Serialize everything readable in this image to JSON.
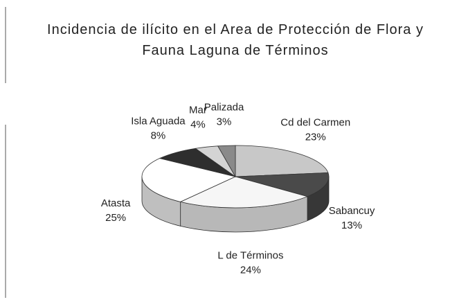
{
  "chart_data": {
    "type": "pie",
    "title": "Incidencia de ilícito en el Area de Protección de Flora y Fauna Laguna de Términos",
    "categories": [
      "Cd del Carmen",
      "Sabancuy",
      "L de Términos",
      "Atasta",
      "Isla Aguada",
      "Mar",
      "Palizada"
    ],
    "values": [
      23,
      13,
      24,
      25,
      8,
      4,
      3
    ],
    "value_labels": [
      "23%",
      "13%",
      "24%",
      "25%",
      "8%",
      "4%",
      "3%"
    ],
    "colors": [
      "#c8c8c8",
      "#4a4a4a",
      "#f6f6f6",
      "#ffffff",
      "#2e2e2e",
      "#d4d4d4",
      "#8a8a8a"
    ]
  }
}
